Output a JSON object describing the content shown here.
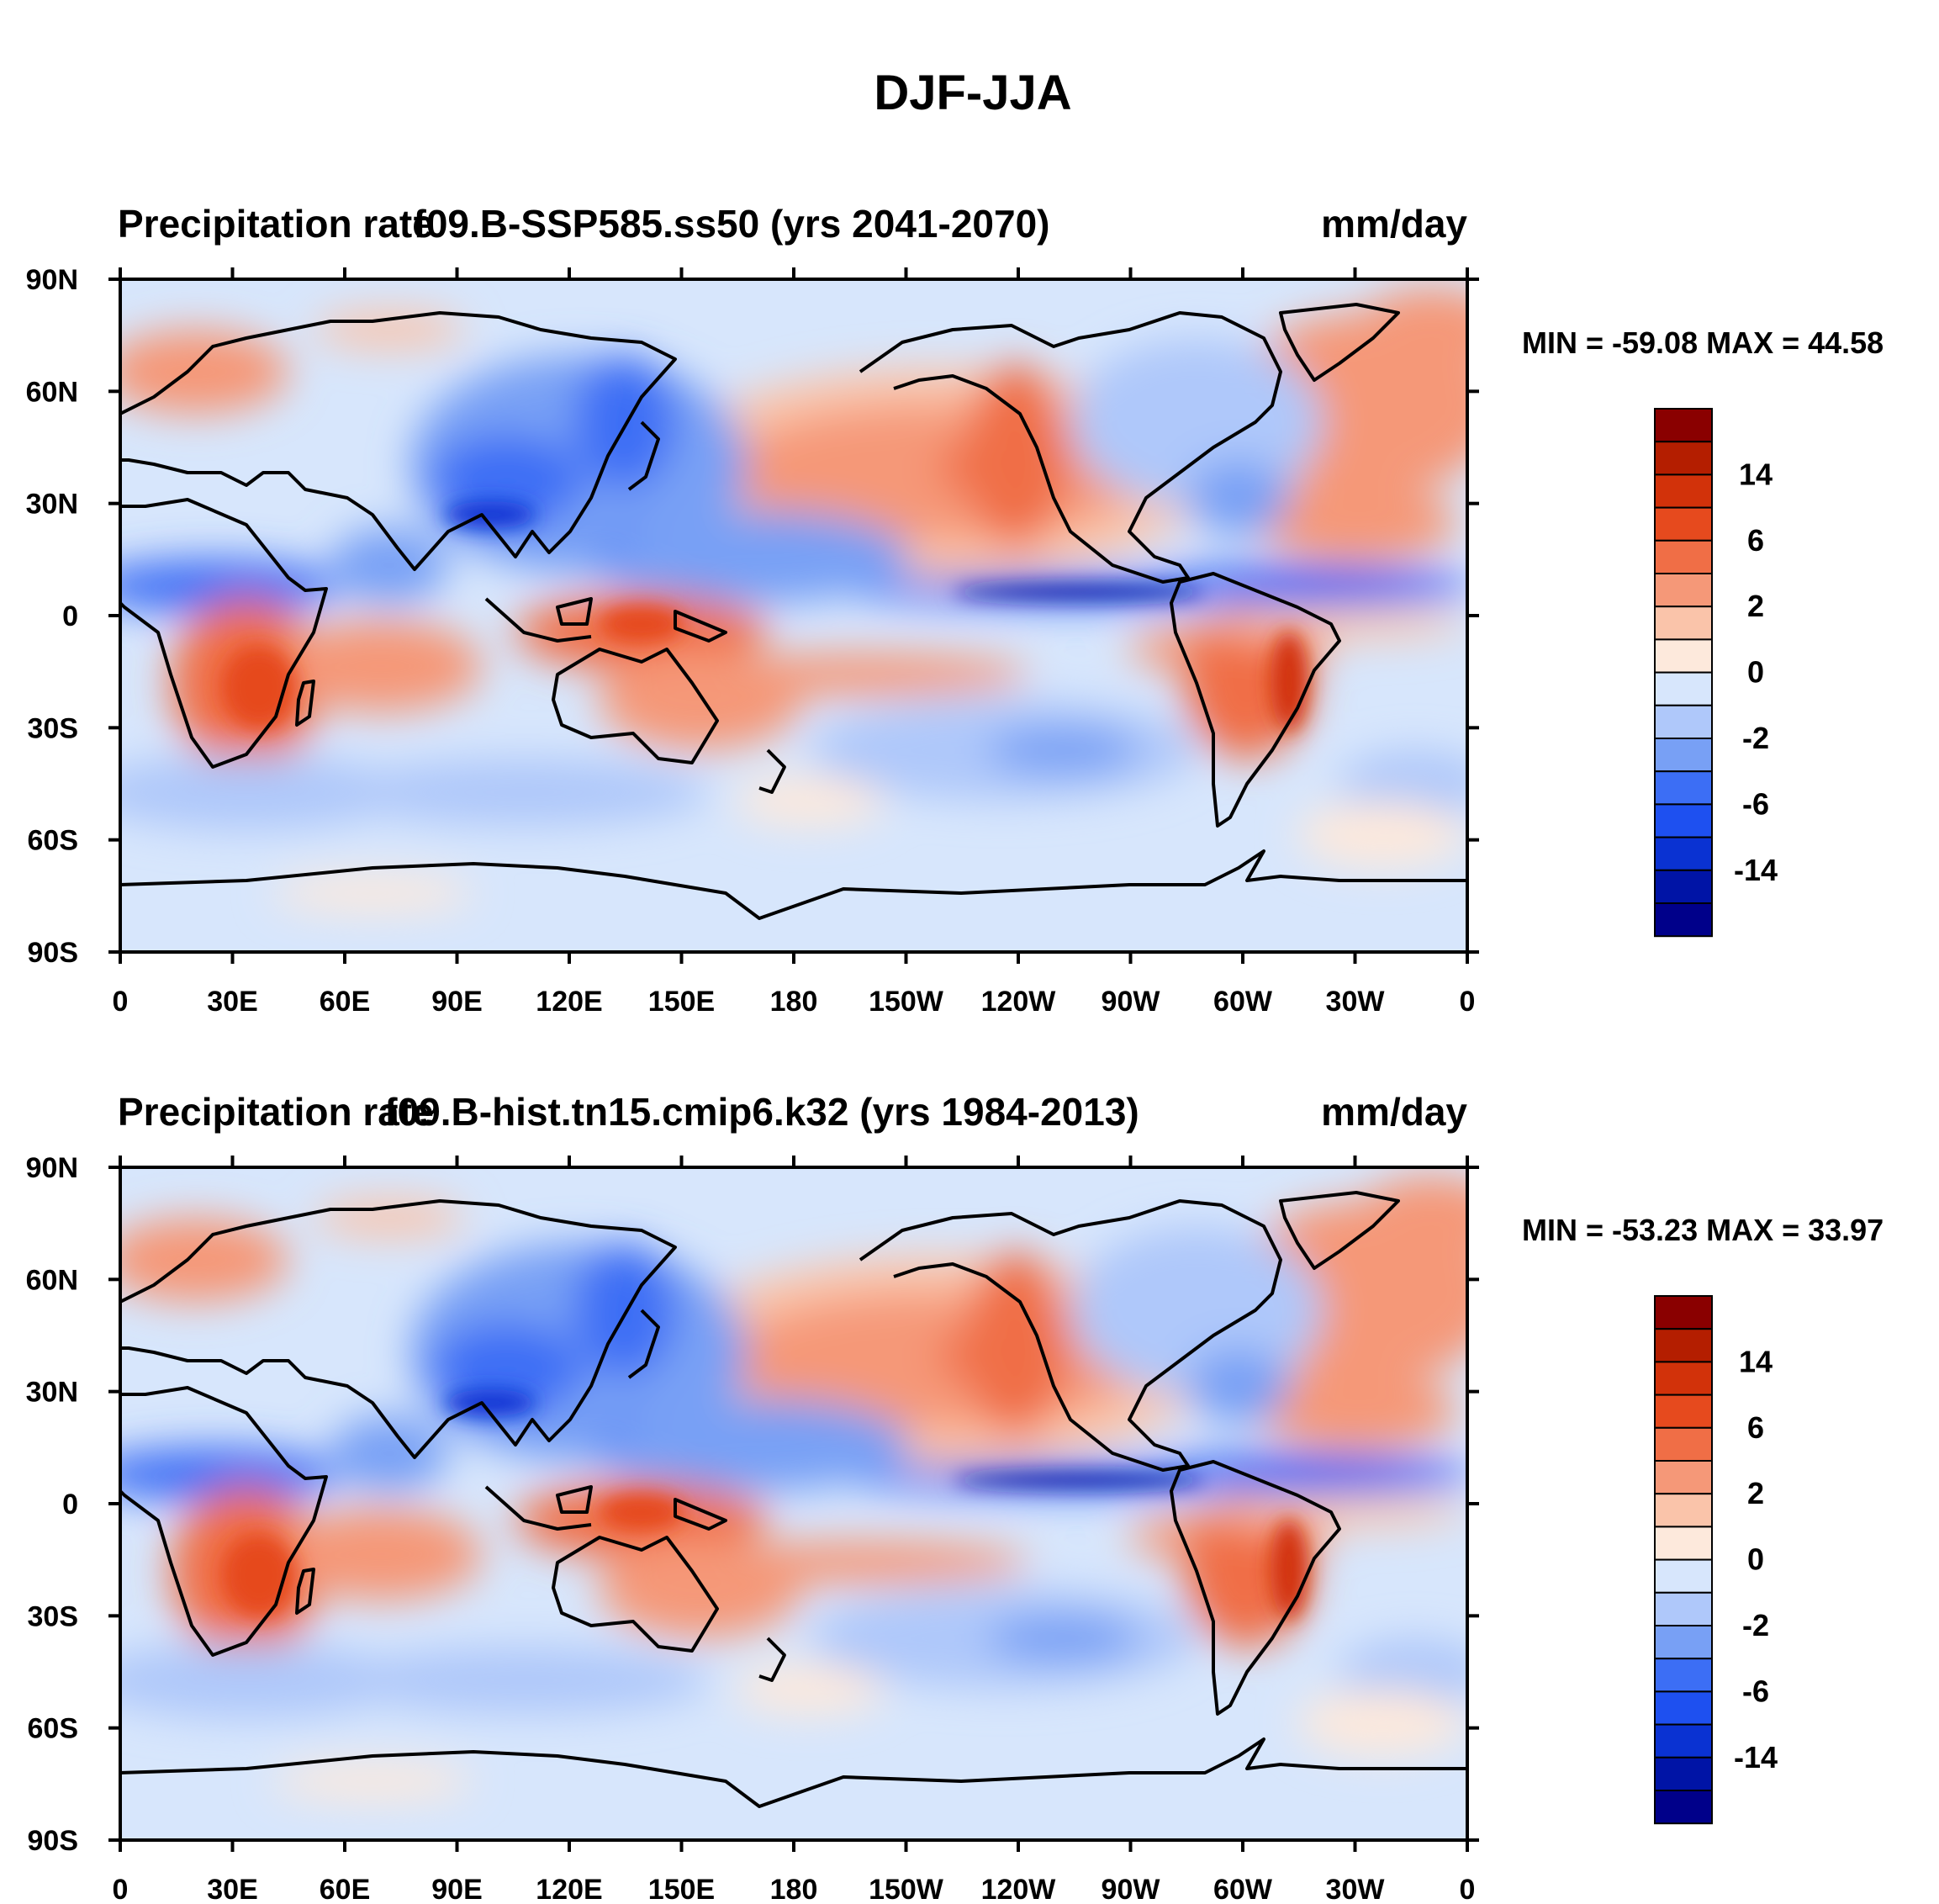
{
  "figure_title": "DJF-JJA",
  "panels": [
    {
      "left_title": "Precipitation rate",
      "center_title": "f09.B-SSP585.ss50 (yrs 2041-2070)",
      "units": "mm/day",
      "stats": "MIN = -59.08 MAX =  44.58"
    },
    {
      "left_title": "Precipitation rate",
      "center_title": "f09.B-hist.tn15.cmip6.k32 (yrs 1984-2013)",
      "units": "mm/day",
      "stats": "MIN = -53.23 MAX =  33.97"
    }
  ],
  "lat_ticks": [
    "90N",
    "60N",
    "30N",
    "0",
    "30S",
    "60S",
    "90S"
  ],
  "lon_ticks": [
    "0",
    "30E",
    "60E",
    "90E",
    "120E",
    "150E",
    "180",
    "150W",
    "120W",
    "90W",
    "60W",
    "30W",
    "0"
  ],
  "colorbar": {
    "colors": [
      "#00008a",
      "#0014a6",
      "#0a32d2",
      "#1e50f0",
      "#3c6ef5",
      "#78a0f5",
      "#afc8fa",
      "#d7e6fc",
      "#fde9dc",
      "#fac4aa",
      "#f59878",
      "#f06e46",
      "#e64a1e",
      "#d2320a",
      "#b41e00",
      "#8a0000"
    ],
    "labels": [
      "-14",
      "-6",
      "-2",
      "0",
      "2",
      "6",
      "14"
    ]
  },
  "palette": {
    "neutral_neg": "#d7e6fc",
    "neutral_pos": "#fde9dc",
    "coast": "#000000"
  }
}
